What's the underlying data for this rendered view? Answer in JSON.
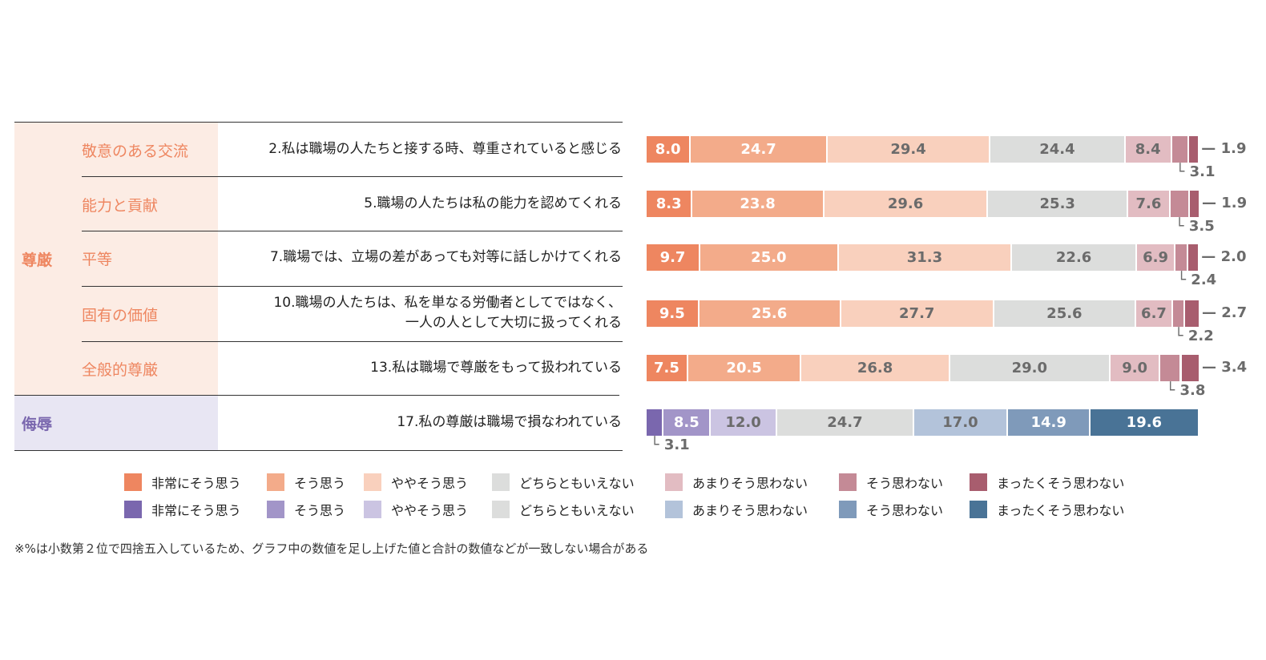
{
  "rows": [
    {
      "category": "尊厳",
      "sub": "敬意のある交流",
      "question": [
        "2.私は職場の人たちと接する時、尊重されていると感じる"
      ],
      "values": [
        8.0,
        24.7,
        29.4,
        24.4,
        8.4,
        3.1,
        1.9
      ],
      "palette": "dignity"
    },
    {
      "category": "尊厳",
      "sub": "能力と貢献",
      "question": [
        "5.職場の人たちは私の能力を認めてくれる"
      ],
      "values": [
        8.3,
        23.8,
        29.6,
        25.3,
        7.6,
        3.5,
        1.9
      ],
      "palette": "dignity"
    },
    {
      "category": "尊厳",
      "sub": "平等",
      "question": [
        "7.職場では、立場の差があっても対等に話しかけてくれる"
      ],
      "values": [
        9.7,
        25.0,
        31.3,
        22.6,
        6.9,
        2.4,
        2.0
      ],
      "palette": "dignity"
    },
    {
      "category": "尊厳",
      "sub": "固有の価値",
      "question": [
        "10.職場の人たちは、私を単なる労働者としてではなく、",
        "一人の人として大切に扱ってくれる"
      ],
      "values": [
        9.5,
        25.6,
        27.7,
        25.6,
        6.7,
        2.2,
        2.7
      ],
      "palette": "dignity"
    },
    {
      "category": "尊厳",
      "sub": "全般的尊厳",
      "question": [
        "13.私は職場で尊厳をもって扱われている"
      ],
      "values": [
        7.5,
        20.5,
        26.8,
        29.0,
        9.0,
        3.8,
        3.4
      ],
      "palette": "dignity"
    },
    {
      "category": "侮辱",
      "sub": "",
      "question": [
        "17.私の尊厳は職場で損なわれている"
      ],
      "values": [
        3.1,
        8.5,
        12.0,
        24.7,
        17.0,
        14.9,
        19.6
      ],
      "palette": "insult"
    }
  ],
  "categories": {
    "dignity": "尊厳",
    "insult": "侮辱"
  },
  "legend_labels": [
    "非常にそう思う",
    "そう思う",
    "ややそう思う",
    "どちらともいえない",
    "あまりそう思わない",
    "そう思わない",
    "まったくそう思わない"
  ],
  "colors": {
    "dignity": [
      "#ee8660",
      "#f3ab8a",
      "#f9d0bd",
      "#dcdddc",
      "#e2bcc2",
      "#c48a96",
      "#a85d6e"
    ],
    "insult": [
      "#7a67ae",
      "#a295c8",
      "#cbc4e2",
      "#dcdddc",
      "#b3c3da",
      "#7f9aba",
      "#497396"
    ],
    "dignity_text": [
      "#ffffff",
      "#ffffff",
      "#6b6b6b",
      "#6b6b6b",
      "#6b6b6b",
      "#6b6b6b",
      "#6b6b6b"
    ],
    "insult_text": [
      "#ffffff",
      "#ffffff",
      "#6b6b6b",
      "#6b6b6b",
      "#6b6b6b",
      "#ffffff",
      "#ffffff"
    ]
  },
  "chart_data": {
    "type": "bar",
    "stacked": true,
    "orientation": "horizontal",
    "categories": [
      "2.私は職場の人たちと接する時、尊重されていると感じる",
      "5.職場の人たちは私の能力を認めてくれる",
      "7.職場では、立場の差があっても対等に話しかけてくれる",
      "10.職場の人たちは、私を単なる労働者としてではなく、一人の人として大切に扱ってくれる",
      "13.私は職場で尊厳をもって扱われている",
      "17.私の尊厳は職場で損なわれている"
    ],
    "series": [
      {
        "name": "非常にそう思う",
        "values": [
          8.0,
          8.3,
          9.7,
          9.5,
          7.5,
          3.1
        ]
      },
      {
        "name": "そう思う",
        "values": [
          24.7,
          23.8,
          25.0,
          25.6,
          20.5,
          8.5
        ]
      },
      {
        "name": "ややそう思う",
        "values": [
          29.4,
          29.6,
          31.3,
          27.7,
          26.8,
          12.0
        ]
      },
      {
        "name": "どちらともいえない",
        "values": [
          24.4,
          25.3,
          22.6,
          25.6,
          29.0,
          24.7
        ]
      },
      {
        "name": "あまりそう思わない",
        "values": [
          8.4,
          7.6,
          6.9,
          6.7,
          9.0,
          17.0
        ]
      },
      {
        "name": "そう思わない",
        "values": [
          3.1,
          3.5,
          2.4,
          2.2,
          3.8,
          14.9
        ]
      },
      {
        "name": "まったくそう思わない",
        "values": [
          1.9,
          1.9,
          2.0,
          2.7,
          3.4,
          19.6
        ]
      }
    ],
    "unit": "%",
    "xlim": [
      0,
      100
    ],
    "legend": "bottom"
  },
  "footnote": "※%は小数第２位で四捨五入しているため、グラフ中の数値を足し上げた値と合計の数値などが一致しない場合がある"
}
